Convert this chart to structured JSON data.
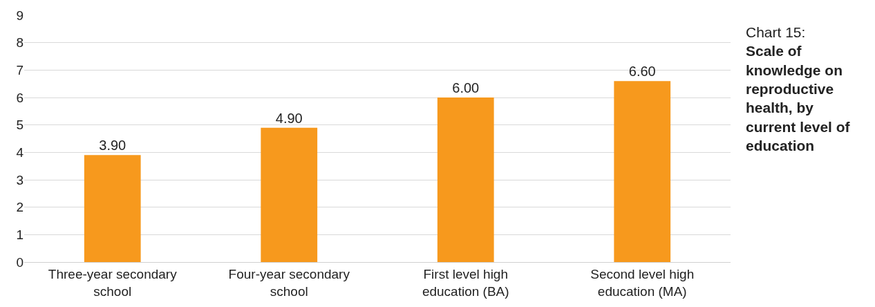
{
  "chart_data": {
    "type": "bar",
    "title": "Chart 15:",
    "subtitle": "Scale of knowledge on reproductive health, by current level of education",
    "categories": [
      "Three-year secondary school",
      "Four-year secondary school",
      "First level high education (BA)",
      "Second level high education (MA)"
    ],
    "values": [
      3.9,
      4.9,
      6.0,
      6.6
    ],
    "value_labels": [
      "3.90",
      "4.90",
      "6.00",
      "6.60"
    ],
    "color": "#f7991d",
    "ylim": [
      0,
      9
    ],
    "yticks": [
      0,
      1,
      2,
      3,
      4,
      5,
      6,
      7,
      8,
      9
    ],
    "grid": "y"
  }
}
